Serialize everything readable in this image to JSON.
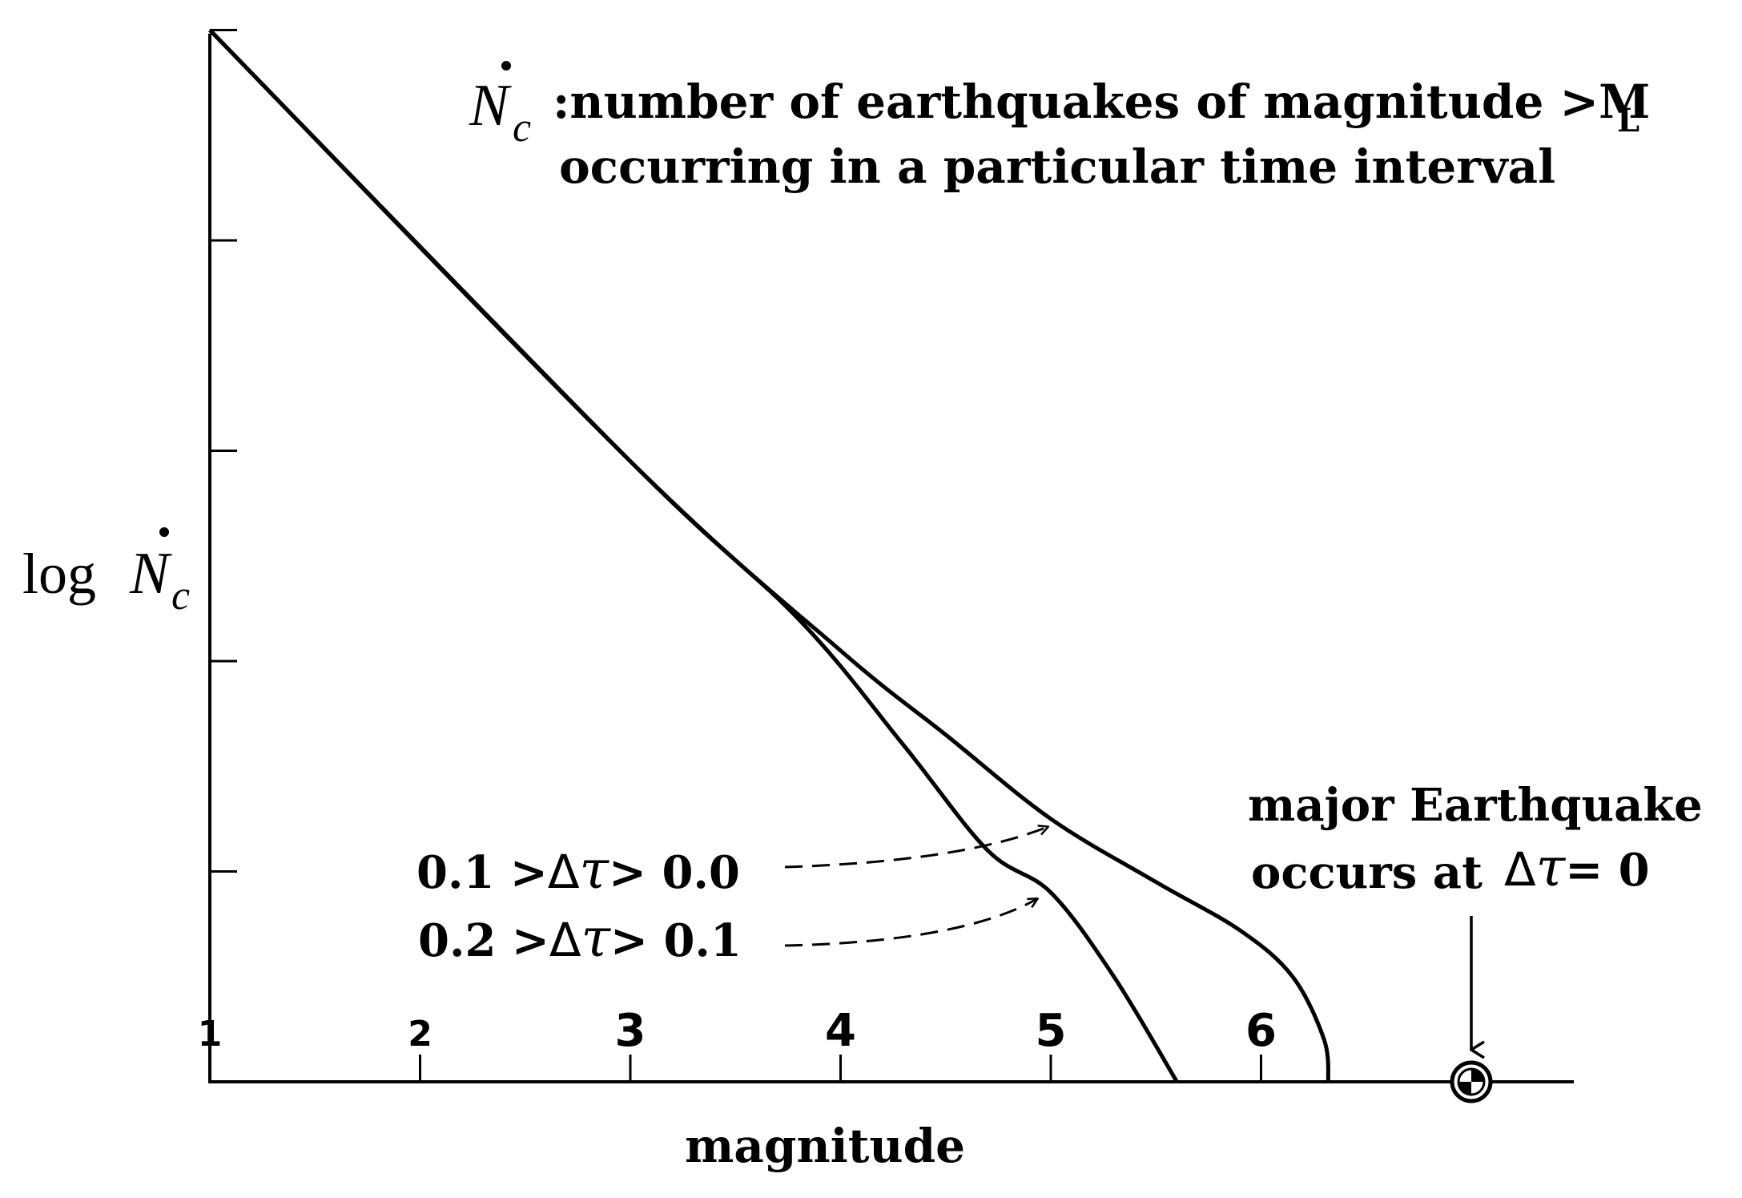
{
  "chart_data": {
    "type": "line",
    "title_symbol": "N",
    "title_symbol_sub": "c",
    "title_line1": ":number of earthquakes of magnitude >M",
    "title_line1_sub": "L",
    "title_line2": "occurring in a particular time interval",
    "ylabel_prefix": "log",
    "ylabel_symbol": "N",
    "ylabel_symbol_sub": "c",
    "xlabel": "magnitude",
    "x_ticks": [
      "1",
      "2",
      "3",
      "4",
      "5",
      "6"
    ],
    "xlim": [
      1,
      7.5
    ],
    "ylim": [
      0,
      5
    ],
    "y_tick_count": 5,
    "series": [
      {
        "x": [
          1.0,
          3.0,
          3.8,
          4.3,
          4.7,
          5.0,
          5.3,
          5.6
        ],
        "y": [
          5.0,
          2.95,
          2.2,
          1.6,
          1.1,
          0.9,
          0.5,
          0.0
        ]
      },
      {
        "x": [
          1.0,
          3.0,
          4.0,
          4.5,
          5.0,
          5.5,
          5.9,
          6.15,
          6.3,
          6.32
        ],
        "y": [
          5.0,
          2.95,
          2.05,
          1.65,
          1.25,
          0.95,
          0.72,
          0.5,
          0.2,
          0.0
        ]
      }
    ],
    "annotations": [
      {
        "label_a": "0.1 >",
        "delta": "Δ",
        "tau": "τ",
        "label_b": "> 0.0",
        "arrow_x": 5.0,
        "arrow_y": 1.25
      },
      {
        "label_a": "0.2 >",
        "delta": "Δ",
        "tau": "τ",
        "label_b": "> 0.1",
        "arrow_x": 4.95,
        "arrow_y": 0.9
      }
    ],
    "event": {
      "line1": "major Earthquake",
      "line2_prefix": "occurs at",
      "delta": "Δ",
      "tau": "τ",
      "line2_suffix": "= 0",
      "x": 7.0
    }
  }
}
